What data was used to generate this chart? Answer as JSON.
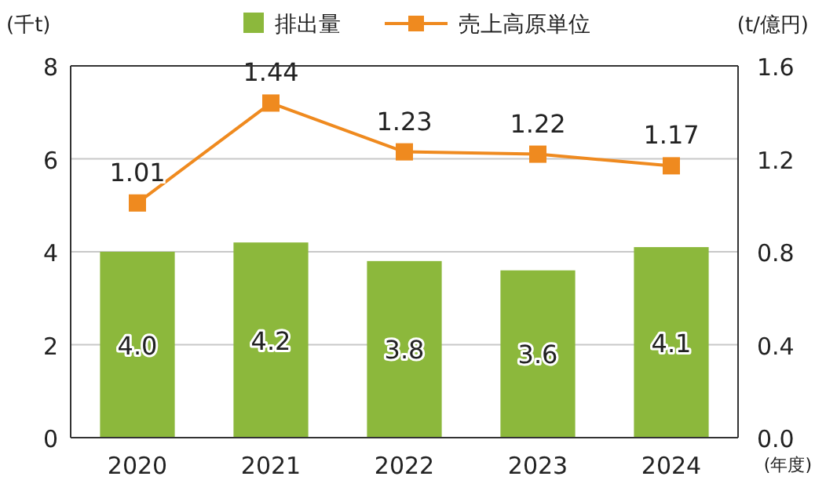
{
  "chart_data": {
    "type": "bar",
    "categories": [
      "2020",
      "2021",
      "2022",
      "2023",
      "2024"
    ],
    "series": [
      {
        "name": "排出量",
        "color": "#8cb83c",
        "values": [
          4.0,
          4.2,
          3.8,
          3.6,
          4.1
        ],
        "value_labels": [
          "4.0",
          "4.2",
          "3.8",
          "3.6",
          "4.1"
        ]
      },
      {
        "name": "売上高原単位",
        "type": "line",
        "axis": "y2",
        "color": "#ef8a1f",
        "marker": "square",
        "values": [
          1.01,
          1.44,
          1.23,
          1.22,
          1.17
        ],
        "value_labels": [
          "1.01",
          "1.44",
          "1.23",
          "1.22",
          "1.17"
        ]
      }
    ],
    "ylim": [
      0,
      8
    ],
    "yticks": [
      0,
      2,
      4,
      6,
      8
    ],
    "y2lim": [
      0,
      1.6
    ],
    "y2ticks": [
      {
        "value": 0,
        "label": "0.0"
      },
      0.4,
      0.8,
      1.2,
      1.6
    ],
    "ylabel": "(千t)",
    "y2label": "(t/億円)",
    "xlabel": "(年度)",
    "grid": "y",
    "legend": "top"
  }
}
